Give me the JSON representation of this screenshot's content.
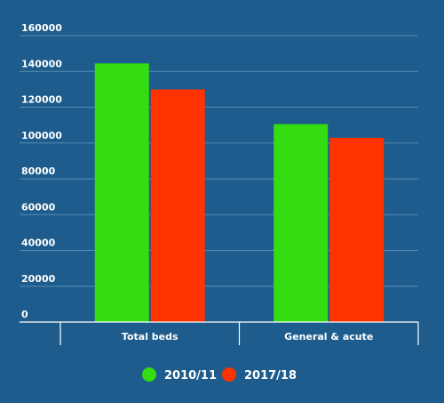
{
  "chart_data": {
    "type": "bar",
    "categories": [
      "Total beds",
      "General & acute"
    ],
    "series": [
      {
        "name": "2010/11",
        "color": "#33dd11",
        "values": [
          144455,
          110568
        ]
      },
      {
        "name": "2017/18",
        "color": "#ff3300",
        "values": [
          129926,
          102913
        ]
      }
    ],
    "ylim": [
      0,
      160000
    ],
    "yticks": [
      0,
      20000,
      40000,
      60000,
      80000,
      100000,
      120000,
      140000,
      160000
    ],
    "grid": true,
    "legend_position": "bottom-center"
  },
  "colors": {
    "background": "#1d5c8c",
    "gridline": "#5a8bb3",
    "axis": "#ffffff",
    "text": "#ffffff"
  }
}
